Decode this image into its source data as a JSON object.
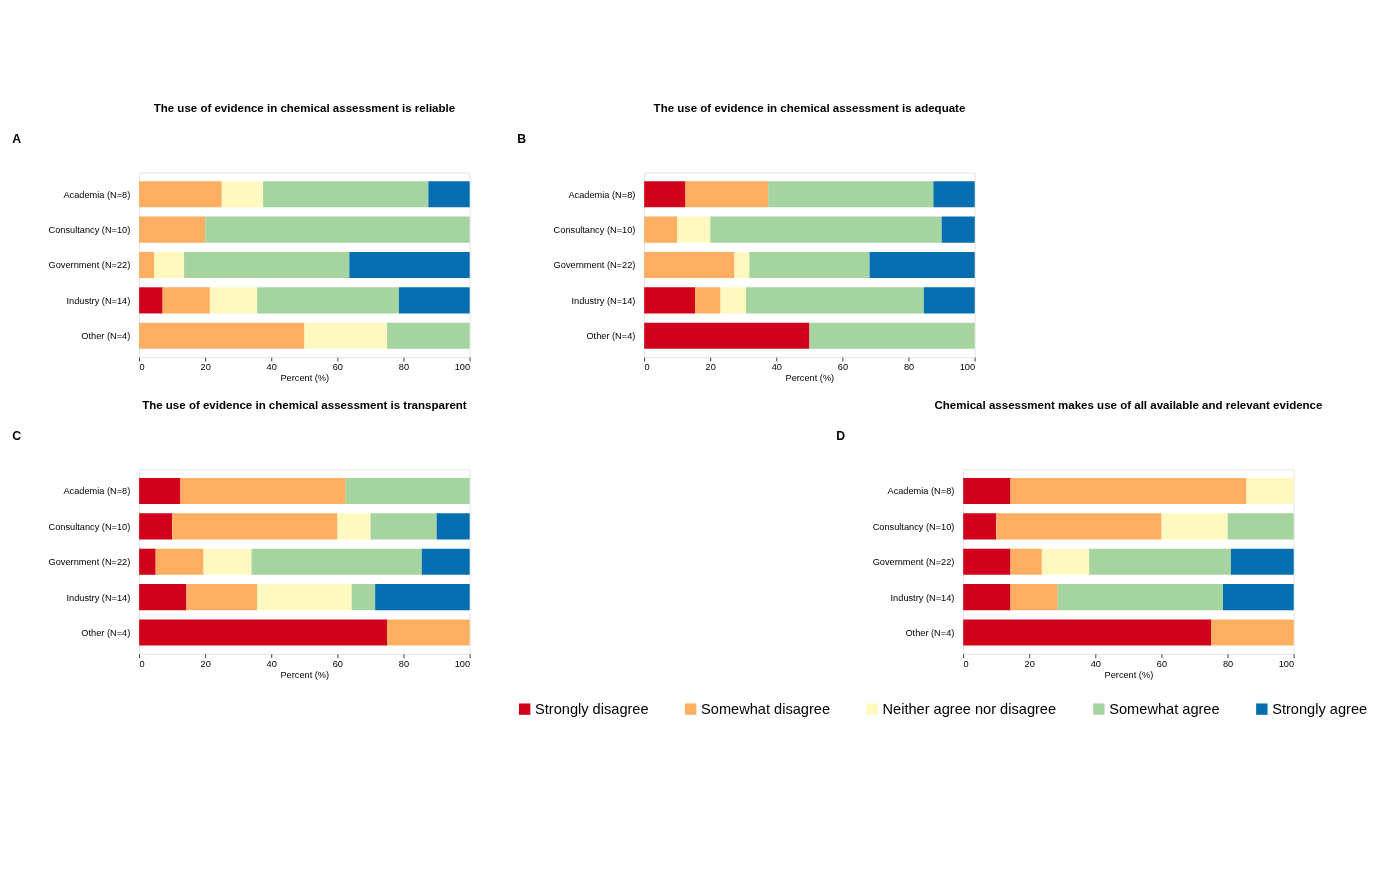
{
  "chart_data": [
    {
      "type": "bar",
      "orientation": "horizontal",
      "stacked": true,
      "title": "The use of evidence in chemical assessment is reliable",
      "annotations": [
        "A"
      ],
      "xlabel": "Percent (%)",
      "xlim": [
        0,
        100
      ],
      "xticks": [
        0,
        20,
        40,
        60,
        80,
        100
      ],
      "grid": false,
      "categories": [
        "Academia (N=8)",
        "Consultancy (N=10)",
        "Government (N=22)",
        "Industry (N=14)",
        "Other (N=4)"
      ],
      "series": [
        {
          "color": "#d0021b",
          "values": [
            0,
            0,
            0,
            7.1,
            0
          ]
        },
        {
          "color": "#fdae61",
          "values": [
            25,
            20,
            4.5,
            14.3,
            50
          ]
        },
        {
          "color": "#fff9bf",
          "values": [
            12.5,
            0,
            9.1,
            14.3,
            25
          ]
        },
        {
          "color": "#a6d4a0",
          "values": [
            50,
            80,
            50,
            42.9,
            25
          ]
        },
        {
          "color": "#056eb0",
          "values": [
            12.5,
            0,
            36.4,
            21.4,
            0
          ]
        }
      ]
    },
    {
      "type": "bar",
      "orientation": "horizontal",
      "stacked": true,
      "title": "The use of evidence in chemical assessment is adequate",
      "annotations": [
        "B"
      ],
      "xlabel": "Percent (%)",
      "xlim": [
        0,
        100
      ],
      "xticks": [
        0,
        20,
        40,
        60,
        80,
        100
      ],
      "grid": false,
      "categories": [
        "Academia (N=8)",
        "Consultancy (N=10)",
        "Government (N=22)",
        "Industry (N=14)",
        "Other (N=4)"
      ],
      "series": [
        {
          "color": "#d0021b",
          "values": [
            12.5,
            0,
            0,
            15.4,
            50
          ]
        },
        {
          "color": "#fdae61",
          "values": [
            25,
            10,
            27.3,
            7.7,
            0
          ]
        },
        {
          "color": "#fff9bf",
          "values": [
            0,
            10,
            4.5,
            7.7,
            0
          ]
        },
        {
          "color": "#a6d4a0",
          "values": [
            50,
            70,
            36.4,
            53.8,
            50
          ]
        },
        {
          "color": "#056eb0",
          "values": [
            12.5,
            10,
            31.8,
            15.4,
            0
          ]
        }
      ]
    },
    {
      "type": "bar",
      "orientation": "horizontal",
      "stacked": true,
      "title": "The use of evidence in chemical assessment is transparent",
      "annotations": [
        "C"
      ],
      "xlabel": "Percent (%)",
      "xlim": [
        0,
        100
      ],
      "xticks": [
        0,
        20,
        40,
        60,
        80,
        100
      ],
      "grid": false,
      "categories": [
        "Academia (N=8)",
        "Consultancy (N=10)",
        "Government (N=22)",
        "Industry (N=14)",
        "Other (N=4)"
      ],
      "series": [
        {
          "color": "#d0021b",
          "values": [
            12.5,
            10,
            5,
            14.3,
            75
          ]
        },
        {
          "color": "#fdae61",
          "values": [
            50,
            50,
            14.5,
            21.4,
            25
          ]
        },
        {
          "color": "#fff9bf",
          "values": [
            0,
            10,
            14.5,
            28.6,
            0
          ]
        },
        {
          "color": "#a6d4a0",
          "values": [
            37.5,
            20,
            51.5,
            7.1,
            0
          ]
        },
        {
          "color": "#056eb0",
          "values": [
            0,
            10,
            14.5,
            28.6,
            0
          ]
        }
      ]
    },
    {
      "type": "bar",
      "orientation": "horizontal",
      "stacked": true,
      "title": "Chemical assessment makes use of all available and relevant evidence",
      "annotations": [
        "D"
      ],
      "xlabel": "Percent (%)",
      "xlim": [
        0,
        100
      ],
      "xticks": [
        0,
        20,
        40,
        60,
        80,
        100
      ],
      "legend": "bottom",
      "grid": false,
      "categories": [
        "Academia (N=8)",
        "Consultancy (N=10)",
        "Government (N=22)",
        "Industry (N=14)",
        "Other (N=4)"
      ],
      "series": [
        {
          "name": "Strongly disagree",
          "color": "#d0021b",
          "values": [
            14.3,
            10,
            14.3,
            14.3,
            75
          ]
        },
        {
          "name": "Somewhat disagree",
          "color": "#fdae61",
          "values": [
            71.4,
            50,
            9.5,
            14.3,
            25
          ]
        },
        {
          "name": "Neither agree nor disagree",
          "color": "#fff9bf",
          "values": [
            14.3,
            20,
            14.3,
            0,
            0
          ]
        },
        {
          "name": "Somewhat agree",
          "color": "#a6d4a0",
          "values": [
            0,
            20,
            42.9,
            50,
            0
          ]
        },
        {
          "name": "Strongly agree",
          "color": "#056eb0",
          "values": [
            0,
            0,
            19,
            21.4,
            0
          ]
        }
      ]
    }
  ]
}
